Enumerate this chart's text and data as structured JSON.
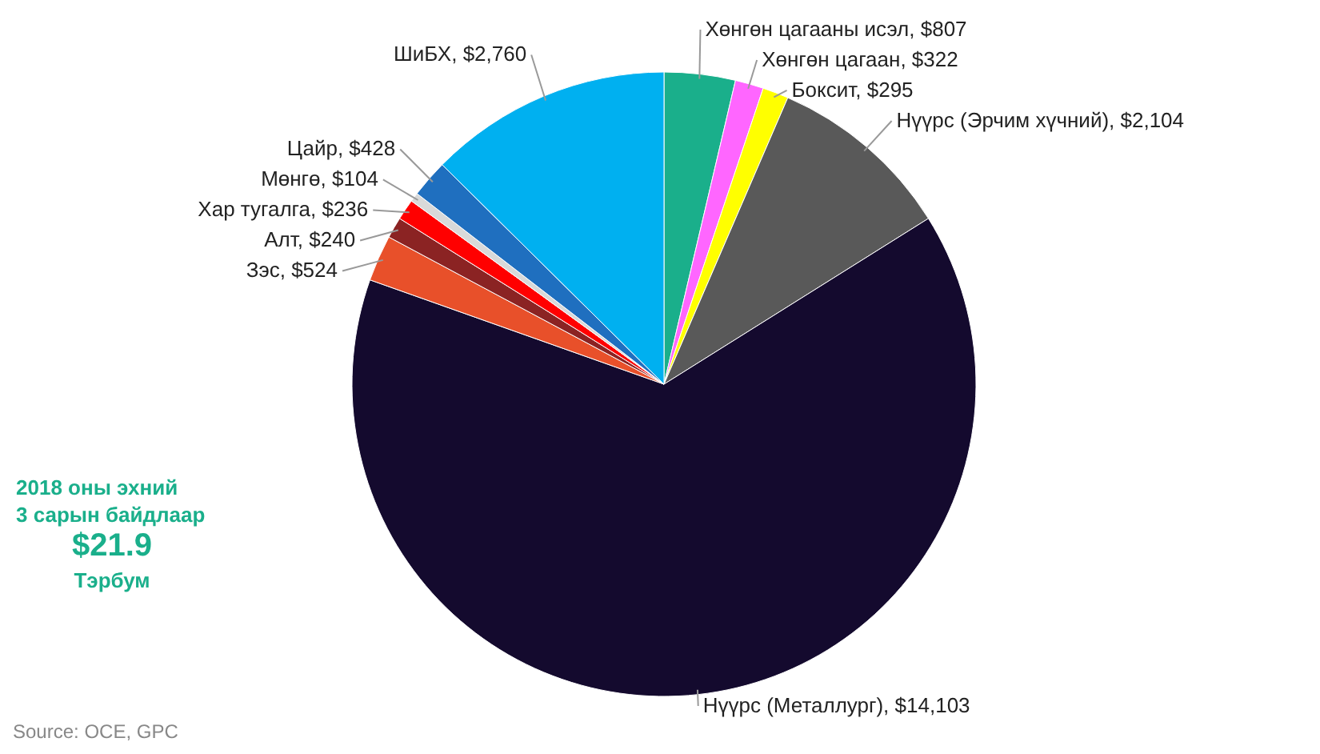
{
  "chart_data": {
    "type": "pie",
    "categories": [
      "Хөнгөн цагааны исэл",
      "Хөнгөн цагаан",
      "Боксит",
      "Нүүрс (Эрчим хүчний)",
      "Нүүрс (Металлург)",
      "Зэс",
      "Алт",
      "Хар тугалга",
      "Мөнгө",
      "Цайр",
      "ШиБХ"
    ],
    "values": [
      807,
      322,
      295,
      2104,
      14103,
      524,
      240,
      236,
      104,
      428,
      2760
    ],
    "value_labels": [
      "$807",
      "$322",
      "$295",
      "$2,104",
      "$14,103",
      "$524",
      "$240",
      "$236",
      "$104",
      "$428",
      "$2,760"
    ],
    "colors": [
      "#1aaf8b",
      "#ff66ff",
      "#ffff00",
      "#595959",
      "#140a2e",
      "#e8502a",
      "#8b2323",
      "#ff0000",
      "#d9d9d9",
      "#1f6fbf",
      "#00b0f0"
    ],
    "annotations": [
      "2018 оны эхний 3 сарын байдлаар",
      "$21.9",
      "Тэрбум",
      "Source: OCE, GPC"
    ]
  }
}
